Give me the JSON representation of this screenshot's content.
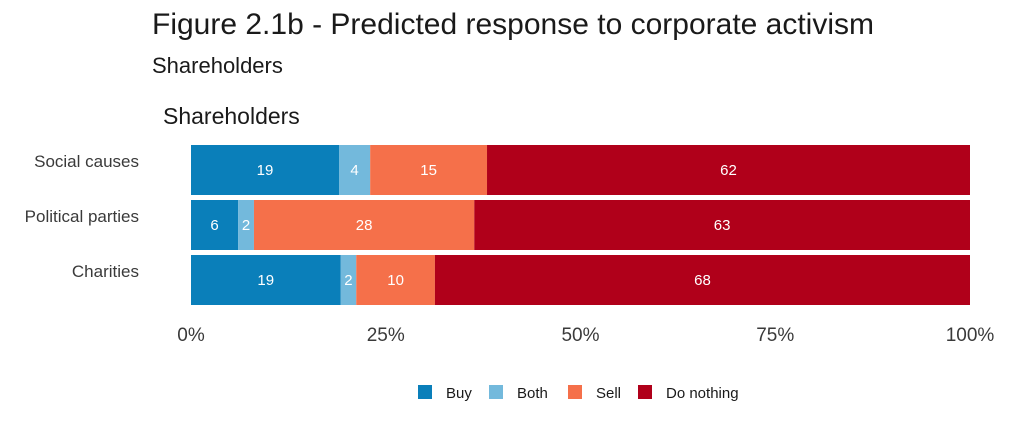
{
  "header": {
    "title": "Figure 2.1b - Predicted response to corporate activism",
    "subtitle": "Shareholders"
  },
  "chart_data": {
    "type": "bar",
    "orientation": "horizontal",
    "stacked": true,
    "panel_title": "Shareholders",
    "categories": [
      "Social causes",
      "Political parties",
      "Charities"
    ],
    "series": [
      {
        "name": "Buy",
        "color": "#0a7fba",
        "values": [
          19,
          6,
          19
        ]
      },
      {
        "name": "Both",
        "color": "#73b9dc",
        "values": [
          4,
          2,
          2
        ]
      },
      {
        "name": "Sell",
        "color": "#f5704a",
        "values": [
          15,
          28,
          10
        ]
      },
      {
        "name": "Do nothing",
        "color": "#b0001a",
        "values": [
          62,
          63,
          68
        ]
      }
    ],
    "xlim": [
      0,
      100
    ],
    "x_ticks": [
      "0%",
      "25%",
      "50%",
      "75%",
      "100%"
    ],
    "legend_position": "bottom",
    "grid": false
  }
}
